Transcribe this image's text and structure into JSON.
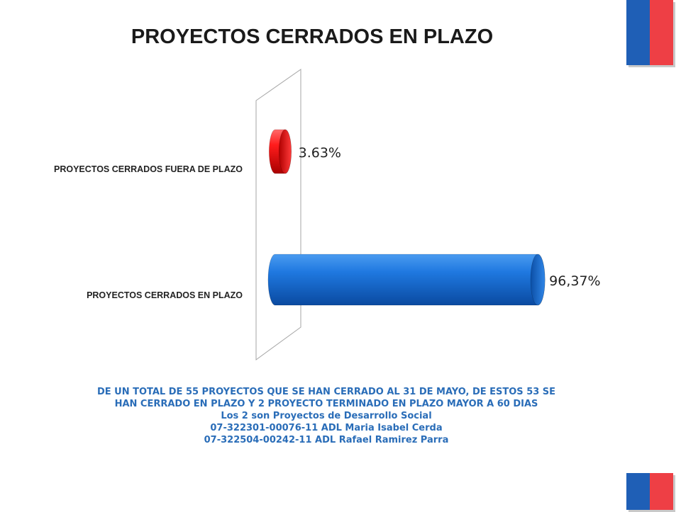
{
  "chart_data": {
    "type": "bar",
    "orientation": "horizontal",
    "style": "3d-cylinder",
    "title": "PROYECTOS CERRADOS EN PLAZO",
    "categories": [
      "PROYECTOS CERRADOS FUERA DE PLAZO",
      "PROYECTOS CERRADOS EN PLAZO"
    ],
    "values": [
      3.63,
      96.37
    ],
    "data_labels": [
      "3.63%",
      "96,37%"
    ],
    "colors": [
      "#e00000",
      "#1262c9"
    ],
    "xlim": [
      0,
      100
    ],
    "grid": false,
    "legend": "none"
  },
  "footer": {
    "lines": [
      "DE UN TOTAL DE 55 PROYECTOS QUE SE HAN CERRADO AL 31 DE MAYO, DE ESTOS 53 SE",
      "HAN CERRADO EN PLAZO Y 2 PROYECTO TERMINADO EN PLAZO MAYOR A 60 DIAS",
      "Los 2 son Proyectos de Desarrollo Social",
      "07-322301-00076-11  ADL Maria Isabel Cerda",
      "07-322504-00242-11  ADL Rafael Ramirez Parra"
    ]
  },
  "colors": {
    "flag_blue": "#1f5fb6",
    "flag_red": "#ee3f45",
    "footer_text": "#2a6db8"
  }
}
